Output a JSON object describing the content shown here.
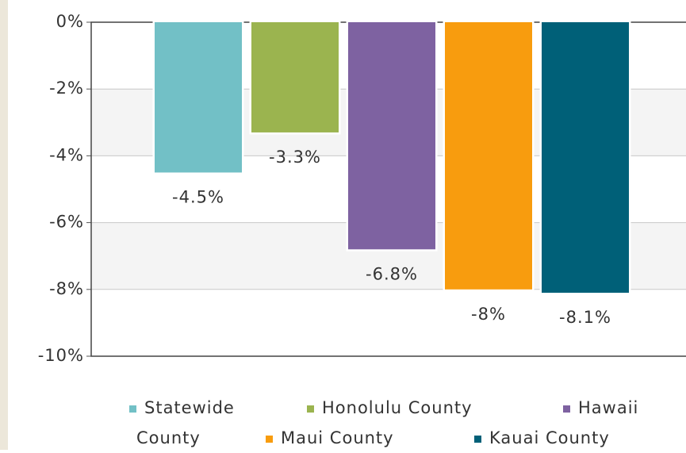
{
  "chart_data": {
    "type": "bar",
    "series": [
      {
        "name": "Statewide",
        "color": "#72c0c6",
        "values": [
          -4.5
        ],
        "value_labels": [
          "-4.5%"
        ]
      },
      {
        "name": "Honolulu County",
        "color": "#9bb44f",
        "values": [
          -3.3
        ],
        "value_labels": [
          "-3.3%"
        ]
      },
      {
        "name": "Hawaii County",
        "color": "#7e62a1",
        "values": [
          -6.8
        ],
        "value_labels": [
          "-6.8%"
        ]
      },
      {
        "name": "Maui County",
        "color": "#f89c0e",
        "values": [
          -8
        ],
        "value_labels": [
          "-8%"
        ]
      },
      {
        "name": "Kauai County",
        "color": "#006078",
        "values": [
          -8.1
        ],
        "value_labels": [
          "-8.1%"
        ]
      }
    ],
    "ylim": [
      -10,
      0
    ],
    "yticks": [
      {
        "value": 0,
        "label": "0%"
      },
      {
        "value": -2,
        "label": "-2%"
      },
      {
        "value": -4,
        "label": "-4%"
      },
      {
        "value": -6,
        "label": "-6%"
      },
      {
        "value": -8,
        "label": "-8%"
      },
      {
        "value": -10,
        "label": "-10%"
      }
    ],
    "grid": true
  }
}
